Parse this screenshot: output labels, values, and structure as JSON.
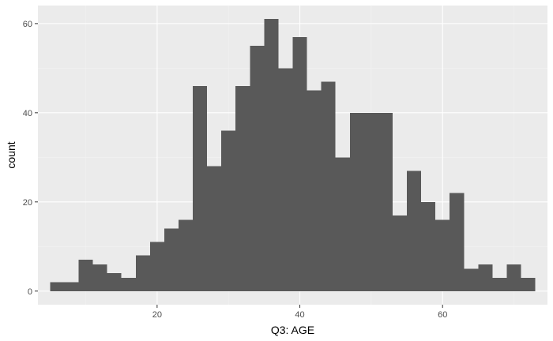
{
  "chart_data": {
    "type": "bar",
    "subtype": "histogram",
    "xlabel": "Q3: AGE",
    "ylabel": "count",
    "bin_width": 2,
    "bins": [
      {
        "start": 5,
        "end": 7,
        "count": 2
      },
      {
        "start": 7,
        "end": 9,
        "count": 2
      },
      {
        "start": 9,
        "end": 11,
        "count": 7
      },
      {
        "start": 11,
        "end": 13,
        "count": 6
      },
      {
        "start": 13,
        "end": 15,
        "count": 4
      },
      {
        "start": 15,
        "end": 17,
        "count": 3
      },
      {
        "start": 17,
        "end": 19,
        "count": 8
      },
      {
        "start": 19,
        "end": 21,
        "count": 11
      },
      {
        "start": 21,
        "end": 23,
        "count": 14
      },
      {
        "start": 23,
        "end": 25,
        "count": 16
      },
      {
        "start": 25,
        "end": 27,
        "count": 46
      },
      {
        "start": 27,
        "end": 29,
        "count": 28
      },
      {
        "start": 29,
        "end": 31,
        "count": 36
      },
      {
        "start": 31,
        "end": 33,
        "count": 46
      },
      {
        "start": 33,
        "end": 35,
        "count": 55
      },
      {
        "start": 35,
        "end": 37,
        "count": 61
      },
      {
        "start": 37,
        "end": 39,
        "count": 50
      },
      {
        "start": 39,
        "end": 41,
        "count": 57
      },
      {
        "start": 41,
        "end": 43,
        "count": 45
      },
      {
        "start": 43,
        "end": 45,
        "count": 47
      },
      {
        "start": 45,
        "end": 47,
        "count": 30
      },
      {
        "start": 47,
        "end": 49,
        "count": 40
      },
      {
        "start": 49,
        "end": 51,
        "count": 40
      },
      {
        "start": 51,
        "end": 53,
        "count": 40
      },
      {
        "start": 53,
        "end": 55,
        "count": 17
      },
      {
        "start": 55,
        "end": 57,
        "count": 27
      },
      {
        "start": 57,
        "end": 59,
        "count": 20
      },
      {
        "start": 59,
        "end": 61,
        "count": 16
      },
      {
        "start": 61,
        "end": 63,
        "count": 22
      },
      {
        "start": 63,
        "end": 65,
        "count": 5
      },
      {
        "start": 65,
        "end": 67,
        "count": 6
      },
      {
        "start": 67,
        "end": 69,
        "count": 3
      },
      {
        "start": 69,
        "end": 71,
        "count": 6
      },
      {
        "start": 71,
        "end": 73,
        "count": 3
      }
    ],
    "xlim": [
      3.3,
      74.7
    ],
    "ylim": [
      -3.05,
      64.05
    ],
    "x_ticks": [
      20,
      40,
      60
    ],
    "y_ticks": [
      0,
      20,
      40,
      60
    ],
    "grid": true,
    "colors": {
      "bar": "#595959",
      "panel_background": "#ebebeb",
      "grid_major": "#ffffff",
      "grid_minor": "#f2f2f2"
    }
  }
}
